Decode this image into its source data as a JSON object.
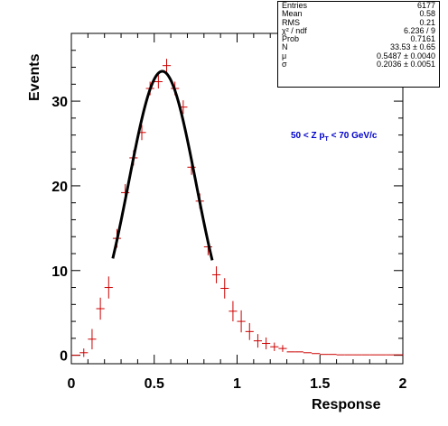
{
  "chart_data": {
    "type": "scatter",
    "xlabel": "Response",
    "ylabel": "Events",
    "xlim": [
      0,
      2
    ],
    "ylim": [
      -1,
      38
    ],
    "x_ticks": [
      "0",
      "0.5",
      "1",
      "1.5",
      "2"
    ],
    "y_ticks": [
      "0",
      "10",
      "20",
      "30"
    ],
    "annotation": {
      "pre": "50 < Z p",
      "sub": "T",
      "post": " < 70 GeV/c"
    },
    "stats": [
      {
        "label": "Entries",
        "value": "6177"
      },
      {
        "label": "Mean",
        "value": "0.58"
      },
      {
        "label": "RMS",
        "value": "0.21"
      },
      {
        "label": "χ² / ndf",
        "value": "6.236 / 9"
      },
      {
        "label": "Prob",
        "value": "0.7161"
      },
      {
        "label": "N",
        "value": "33.53 ± 0.65"
      },
      {
        "label": "μ",
        "value": "0.5487 ± 0.0040"
      },
      {
        "label": "σ",
        "value": "0.2036 ± 0.0051"
      }
    ],
    "series": [
      {
        "kind": "histogram-points",
        "color": "#cc0000",
        "bin_width": 0.05,
        "x": [
          0.025,
          0.075,
          0.125,
          0.175,
          0.225,
          0.275,
          0.325,
          0.375,
          0.425,
          0.475,
          0.525,
          0.575,
          0.625,
          0.675,
          0.725,
          0.775,
          0.825,
          0.875,
          0.925,
          0.975,
          1.025,
          1.075,
          1.125,
          1.175,
          1.225,
          1.275,
          1.325,
          1.375,
          1.425,
          1.475,
          1.525,
          1.575,
          1.625,
          1.675,
          1.725,
          1.775,
          1.825,
          1.875,
          1.925,
          1.975
        ],
        "y": [
          0,
          0.3,
          1.9,
          5.5,
          8.0,
          13.8,
          19.2,
          23.3,
          26.3,
          31.5,
          32.3,
          34.2,
          31.5,
          29.3,
          22.2,
          18.2,
          12.8,
          9.5,
          7.9,
          5.2,
          4.0,
          2.8,
          1.7,
          1.4,
          1.0,
          0.8,
          0.4,
          0.4,
          0.3,
          0.2,
          0.1,
          0.1,
          0.05,
          0.05,
          0.05,
          0.05,
          0.05,
          0.05,
          0.05,
          0.05
        ],
        "err": [
          0,
          0.5,
          1.2,
          1.3,
          1.3,
          1.1,
          1.0,
          0.9,
          0.9,
          0.8,
          0.8,
          0.8,
          0.8,
          0.8,
          0.9,
          0.9,
          1.0,
          1.0,
          1.2,
          1.2,
          1.3,
          1.0,
          0.8,
          0.7,
          0.5,
          0.4,
          0,
          0,
          0,
          0,
          0,
          0,
          0,
          0,
          0,
          0,
          0,
          0,
          0,
          0
        ]
      },
      {
        "kind": "gaussian-fit",
        "color": "#000000",
        "N": 33.53,
        "mu": 0.5487,
        "sigma": 0.2036,
        "x_range": [
          0.25,
          0.85
        ]
      }
    ]
  }
}
